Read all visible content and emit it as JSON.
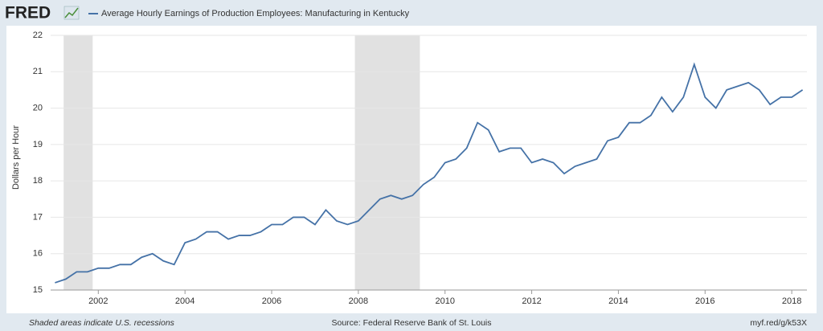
{
  "logo": "FRED",
  "chart_data": {
    "type": "line",
    "title": "Average Hourly Earnings of Production Employees: Manufacturing in Kentucky",
    "y_label": "Dollars per Hour",
    "note": "Shaded areas indicate U.S. recessions",
    "source": "Source: Federal Reserve Bank of St. Louis",
    "link": "myf.red/g/k53X",
    "x": [
      2001.0,
      2001.25,
      2001.5,
      2001.75,
      2002.0,
      2002.25,
      2002.5,
      2002.75,
      2003.0,
      2003.25,
      2003.5,
      2003.75,
      2004.0,
      2004.25,
      2004.5,
      2004.75,
      2005.0,
      2005.25,
      2005.5,
      2005.75,
      2006.0,
      2006.25,
      2006.5,
      2006.75,
      2007.0,
      2007.25,
      2007.5,
      2007.75,
      2008.0,
      2008.25,
      2008.5,
      2008.75,
      2009.0,
      2009.25,
      2009.5,
      2009.75,
      2010.0,
      2010.25,
      2010.5,
      2010.75,
      2011.0,
      2011.25,
      2011.5,
      2011.75,
      2012.0,
      2012.25,
      2012.5,
      2012.75,
      2013.0,
      2013.25,
      2013.5,
      2013.75,
      2014.0,
      2014.25,
      2014.5,
      2014.75,
      2015.0,
      2015.25,
      2015.5,
      2015.75,
      2016.0,
      2016.25,
      2016.5,
      2016.75,
      2017.0,
      2017.25,
      2017.5,
      2017.75,
      2018.0,
      2018.25
    ],
    "series": [
      {
        "name": "Average Hourly Earnings of Production Employees: Manufacturing in Kentucky",
        "color": "#4572a7",
        "values": [
          15.2,
          15.3,
          15.5,
          15.5,
          15.6,
          15.6,
          15.7,
          15.7,
          15.9,
          16.0,
          15.8,
          15.7,
          16.3,
          16.4,
          16.6,
          16.6,
          16.4,
          16.5,
          16.5,
          16.6,
          16.8,
          16.8,
          17.0,
          17.0,
          16.8,
          17.2,
          16.9,
          16.8,
          16.9,
          17.2,
          17.5,
          17.6,
          17.5,
          17.6,
          17.9,
          18.1,
          18.5,
          18.6,
          18.9,
          19.6,
          19.4,
          18.8,
          18.9,
          18.9,
          18.5,
          18.6,
          18.5,
          18.2,
          18.4,
          18.5,
          18.6,
          19.1,
          19.2,
          19.6,
          19.6,
          19.8,
          20.3,
          19.9,
          20.3,
          21.2,
          20.3,
          20.0,
          20.5,
          20.6,
          20.7,
          20.5,
          20.1,
          20.3,
          20.3,
          20.5
        ]
      }
    ],
    "recessions": [
      [
        2001.2,
        2001.87
      ],
      [
        2007.92,
        2009.42
      ]
    ],
    "xlim": [
      2000.9,
      2018.35
    ],
    "xticks": [
      2002,
      2004,
      2006,
      2008,
      2010,
      2012,
      2014,
      2016,
      2018
    ],
    "ylim": [
      15,
      22
    ],
    "yticks": [
      15,
      16,
      17,
      18,
      19,
      20,
      21,
      22
    ],
    "grid": true
  }
}
